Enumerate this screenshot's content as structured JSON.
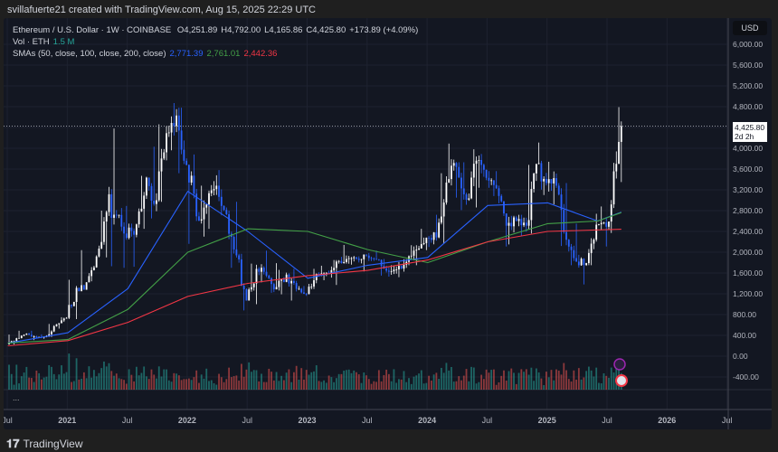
{
  "header": {
    "caption": "svillafuerte21 created with TradingView.com, Aug 15, 2025 22:29 UTC"
  },
  "legend": {
    "symbol": "Ethereum / U.S. Dollar · 1W · COINBASE",
    "open": "O4,251.89",
    "high": "H4,792.00",
    "low": "L4,165.86",
    "close": "C4,425.80",
    "change": "+173.89 (+4.09%)",
    "vol_label": "Vol · ETH",
    "vol_value": "1.5 M",
    "sma_label": "SMAs (50, close, 100, close, 200, close)",
    "sma50": "2,771.39",
    "sma100": "2,761.01",
    "sma200": "2,442.36"
  },
  "price_axis": {
    "currency": "USD",
    "last_price": "4,425.80",
    "countdown": "2d 2h"
  },
  "more": "...",
  "footer": {
    "brand": "TradingView",
    "logo_icon": "tradingview-logo"
  },
  "colors": {
    "up": "#ffffff",
    "down": "#2962ff",
    "sma50": "#2962ff",
    "sma100": "#43a047",
    "sma200": "#f23645",
    "vol_up": "#26a69a",
    "vol_down": "#ef5350"
  },
  "chart_data": {
    "type": "candlestick",
    "interval": "monthly approximation of weekly candles",
    "ylim": [
      -400,
      6400
    ],
    "y_ticks": [
      "6,000.00",
      "5,600.00",
      "5,200.00",
      "4,800.00",
      "4,000.00",
      "3,600.00",
      "3,200.00",
      "2,800.00",
      "2,400.00",
      "2,000.00",
      "1,600.00",
      "1,200.00",
      "800.00",
      "400.00",
      "0.00",
      "-400.00"
    ],
    "x_ticks": [
      "Jul",
      "2021",
      "Jul",
      "2022",
      "Jul",
      "2023",
      "Jul",
      "2024",
      "Jul",
      "2025",
      "Jul",
      "2026",
      "Jul"
    ],
    "ohlc": [
      [
        "2020-07",
        226,
        415,
        225,
        345
      ],
      [
        "2020-08",
        345,
        490,
        340,
        434
      ],
      [
        "2020-09",
        434,
        490,
        310,
        360
      ],
      [
        "2020-10",
        360,
        420,
        335,
        386
      ],
      [
        "2020-11",
        386,
        620,
        370,
        612
      ],
      [
        "2020-12",
        612,
        750,
        530,
        737
      ],
      [
        "2021-01",
        737,
        1470,
        714,
        1314
      ],
      [
        "2021-02",
        1314,
        2040,
        1300,
        1420
      ],
      [
        "2021-03",
        1420,
        1940,
        1440,
        1918
      ],
      [
        "2021-04",
        1918,
        2800,
        1900,
        2773
      ],
      [
        "2021-05",
        2773,
        4380,
        1730,
        2707
      ],
      [
        "2021-06",
        2707,
        2890,
        1700,
        2275
      ],
      [
        "2021-07",
        2275,
        2550,
        1720,
        2536
      ],
      [
        "2021-08",
        2536,
        3470,
        2450,
        3434
      ],
      [
        "2021-09",
        3434,
        4030,
        2650,
        3000
      ],
      [
        "2021-10",
        3000,
        4460,
        2970,
        4290
      ],
      [
        "2021-11",
        4290,
        4870,
        3960,
        4630
      ],
      [
        "2021-12",
        4630,
        4780,
        3520,
        3680
      ],
      [
        "2022-01",
        3680,
        3880,
        2160,
        2690
      ],
      [
        "2022-02",
        2690,
        3280,
        2300,
        2920
      ],
      [
        "2022-03",
        2920,
        3480,
        2450,
        3280
      ],
      [
        "2022-04",
        3280,
        3580,
        2710,
        2730
      ],
      [
        "2022-05",
        2730,
        2970,
        1700,
        1940
      ],
      [
        "2022-06",
        1940,
        1970,
        880,
        1070
      ],
      [
        "2022-07",
        1070,
        1780,
        1000,
        1680
      ],
      [
        "2022-08",
        1680,
        2030,
        1420,
        1550
      ],
      [
        "2022-09",
        1550,
        1790,
        1220,
        1330
      ],
      [
        "2022-10",
        1330,
        1660,
        1190,
        1570
      ],
      [
        "2022-11",
        1570,
        1680,
        1070,
        1295
      ],
      [
        "2022-12",
        1295,
        1350,
        1160,
        1195
      ],
      [
        "2023-01",
        1195,
        1680,
        1190,
        1585
      ],
      [
        "2023-02",
        1585,
        1740,
        1460,
        1605
      ],
      [
        "2023-03",
        1605,
        1850,
        1370,
        1820
      ],
      [
        "2023-04",
        1820,
        2140,
        1780,
        1870
      ],
      [
        "2023-05",
        1870,
        1930,
        1760,
        1875
      ],
      [
        "2023-06",
        1875,
        1930,
        1630,
        1935
      ],
      [
        "2023-07",
        1935,
        2030,
        1830,
        1855
      ],
      [
        "2023-08",
        1855,
        1870,
        1550,
        1645
      ],
      [
        "2023-09",
        1645,
        1750,
        1530,
        1670
      ],
      [
        "2023-10",
        1670,
        1865,
        1520,
        1815
      ],
      [
        "2023-11",
        1815,
        2135,
        1750,
        2050
      ],
      [
        "2023-12",
        2050,
        2450,
        2040,
        2280
      ],
      [
        "2024-01",
        2280,
        2720,
        2100,
        2285
      ],
      [
        "2024-02",
        2285,
        3520,
        2170,
        3340
      ],
      [
        "2024-03",
        3340,
        4090,
        3050,
        3640
      ],
      [
        "2024-04",
        3640,
        3730,
        2810,
        3010
      ],
      [
        "2024-05",
        3010,
        3980,
        2860,
        3760
      ],
      [
        "2024-06",
        3760,
        3890,
        3240,
        3430
      ],
      [
        "2024-07",
        3430,
        3560,
        3080,
        3230
      ],
      [
        "2024-08",
        3230,
        3280,
        2110,
        2510
      ],
      [
        "2024-09",
        2510,
        2700,
        2150,
        2600
      ],
      [
        "2024-10",
        2600,
        2720,
        2310,
        2510
      ],
      [
        "2024-11",
        2510,
        3680,
        2360,
        3700
      ],
      [
        "2024-12",
        3700,
        4110,
        3100,
        3330
      ],
      [
        "2025-01",
        3330,
        3740,
        2920,
        3280
      ],
      [
        "2025-02",
        3280,
        3330,
        2120,
        2240
      ],
      [
        "2025-03",
        2240,
        2550,
        1750,
        1820
      ],
      [
        "2025-04",
        1820,
        1950,
        1380,
        1790
      ],
      [
        "2025-05",
        1790,
        2740,
        1750,
        2530
      ],
      [
        "2025-06",
        2530,
        2880,
        2110,
        2490
      ],
      [
        "2025-07",
        2490,
        3940,
        2370,
        3700
      ],
      [
        "2025-08",
        3700,
        4792,
        3350,
        4425.8
      ]
    ],
    "sma": [
      {
        "name": "SMA 50",
        "points": [
          [
            "2020-07",
            250
          ],
          [
            "2021-01",
            450
          ],
          [
            "2021-07",
            1300
          ],
          [
            "2022-01",
            3170
          ],
          [
            "2022-07",
            2400
          ],
          [
            "2023-01",
            1500
          ],
          [
            "2023-07",
            1750
          ],
          [
            "2024-01",
            1900
          ],
          [
            "2024-07",
            2900
          ],
          [
            "2025-01",
            2950
          ],
          [
            "2025-06",
            2600
          ],
          [
            "2025-08",
            2771.39
          ]
        ]
      },
      {
        "name": "SMA 100",
        "points": [
          [
            "2020-07",
            250
          ],
          [
            "2021-01",
            320
          ],
          [
            "2021-07",
            900
          ],
          [
            "2022-01",
            2000
          ],
          [
            "2022-07",
            2450
          ],
          [
            "2023-01",
            2400
          ],
          [
            "2023-07",
            2050
          ],
          [
            "2024-01",
            1800
          ],
          [
            "2024-07",
            2200
          ],
          [
            "2025-01",
            2550
          ],
          [
            "2025-06",
            2600
          ],
          [
            "2025-08",
            2761.01
          ]
        ]
      },
      {
        "name": "SMA 200",
        "points": [
          [
            "2020-07",
            200
          ],
          [
            "2021-01",
            300
          ],
          [
            "2021-07",
            650
          ],
          [
            "2022-01",
            1150
          ],
          [
            "2022-07",
            1400
          ],
          [
            "2023-01",
            1550
          ],
          [
            "2023-07",
            1650
          ],
          [
            "2024-01",
            1850
          ],
          [
            "2024-07",
            2200
          ],
          [
            "2025-01",
            2400
          ],
          [
            "2025-08",
            2442.36
          ]
        ]
      }
    ]
  }
}
